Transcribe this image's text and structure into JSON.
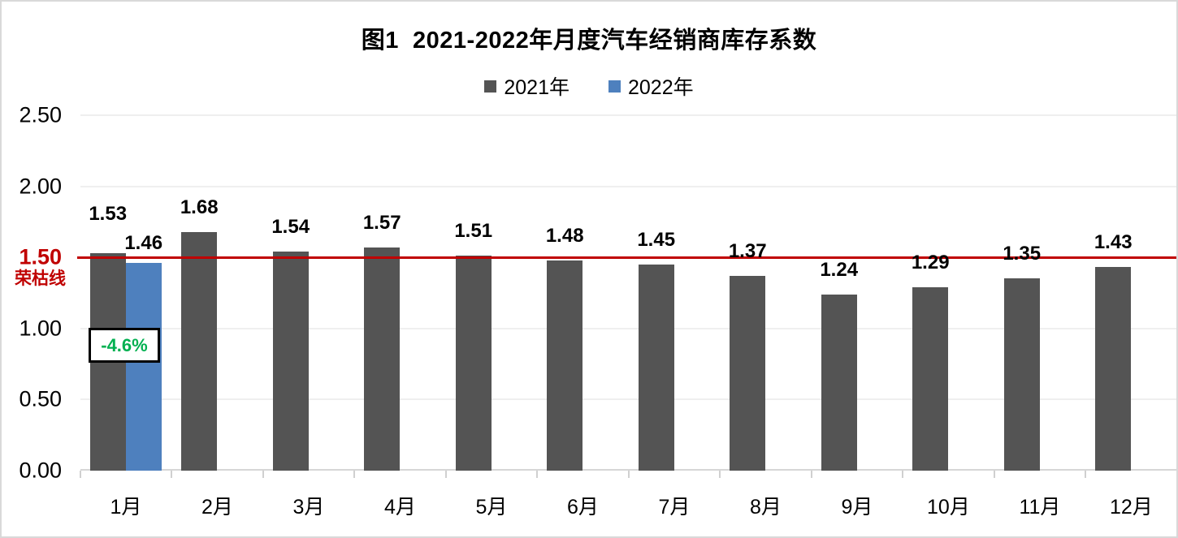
{
  "title": "图1  2021-2022年月度汽车经销商库存系数",
  "chart_data": {
    "type": "bar",
    "title": "图1  2021-2022年月度汽车经销商库存系数",
    "categories": [
      "1月",
      "2月",
      "3月",
      "4月",
      "5月",
      "6月",
      "7月",
      "8月",
      "9月",
      "10月",
      "11月",
      "12月"
    ],
    "series": [
      {
        "name": "2021年",
        "color": "#545454",
        "values": [
          1.53,
          1.68,
          1.54,
          1.57,
          1.51,
          1.48,
          1.45,
          1.37,
          1.24,
          1.29,
          1.35,
          1.43
        ]
      },
      {
        "name": "2022年",
        "color": "#4e80be",
        "values": [
          1.46,
          null,
          null,
          null,
          null,
          null,
          null,
          null,
          null,
          null,
          null,
          null
        ]
      }
    ],
    "ylim": [
      0,
      2.5
    ],
    "yticks": [
      0,
      0.5,
      1.0,
      1.5,
      2.0,
      2.5
    ],
    "ytick_labels": [
      "0.00",
      "0.50",
      "1.00",
      "1.50",
      "2.00",
      "2.50"
    ],
    "grid": true,
    "legend_position": "top-center",
    "value_labels": "outside-end, two decimals, bold",
    "reference_line": {
      "value": 1.5,
      "tick_label": "1.50",
      "label": "荣枯线",
      "color": "#c00000"
    },
    "annotation": {
      "text": "-4.6%",
      "color": "#00b050",
      "target_category": "1月"
    }
  },
  "colors": {
    "bar_2021": "#545454",
    "bar_2022": "#4e80be",
    "reference_line": "#c00000",
    "annotation_text": "#00b050",
    "gridline": "#efefef",
    "axis_line": "#d6d6d6",
    "background": "#ffffff"
  }
}
